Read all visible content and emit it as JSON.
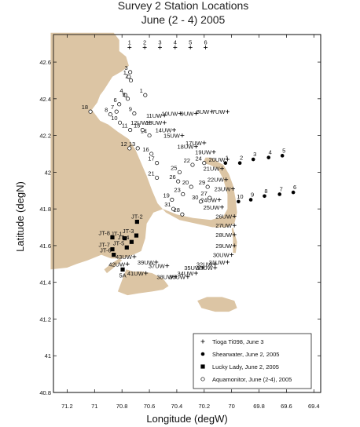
{
  "chart_data": {
    "type": "scatter",
    "title": "Survey 2 Station Locations",
    "subtitle": "June (2 - 4) 2005",
    "xlabel": "Longitude (degW)",
    "ylabel": "Latitude (degN)",
    "xlim": [
      71.3,
      69.35
    ],
    "ylim": [
      40.8,
      42.75
    ],
    "xticks": [
      "71.2",
      "71",
      "70.8",
      "70.6",
      "70.4",
      "70.2",
      "70",
      "69.8",
      "69.6",
      "69.4"
    ],
    "xtick_values": [
      71.2,
      71.0,
      70.8,
      70.6,
      70.4,
      70.2,
      70.0,
      69.8,
      69.6,
      69.4
    ],
    "yticks": [
      "40.8",
      "41",
      "41.2",
      "41.4",
      "41.6",
      "41.8",
      "42",
      "42.2",
      "42.4",
      "42.6"
    ],
    "ytick_values": [
      40.8,
      41.0,
      41.2,
      41.4,
      41.6,
      41.8,
      42.0,
      42.2,
      42.4,
      42.6
    ],
    "land_color": "#dcc5a4",
    "legend_position": "bottom-right",
    "series": [
      {
        "name": "Tioga Ti098, June 3",
        "marker": "plus",
        "points": [
          {
            "label": "1",
            "x": 70.745,
            "y": 42.68
          },
          {
            "label": "2",
            "x": 70.634,
            "y": 42.68
          },
          {
            "label": "3",
            "x": 70.523,
            "y": 42.68
          },
          {
            "label": "4",
            "x": 70.412,
            "y": 42.68
          },
          {
            "label": "5",
            "x": 70.301,
            "y": 42.68
          },
          {
            "label": "6",
            "x": 70.19,
            "y": 42.68
          },
          {
            "label": "7UW",
            "x": 70.03,
            "y": 42.33
          },
          {
            "label": "8UW",
            "x": 70.145,
            "y": 42.33
          },
          {
            "label": "9UW",
            "x": 70.26,
            "y": 42.32
          },
          {
            "label": "10UW",
            "x": 70.375,
            "y": 42.32
          },
          {
            "label": "11UW",
            "x": 70.49,
            "y": 42.31
          },
          {
            "label": "12UW",
            "x": 70.6,
            "y": 42.27
          },
          {
            "label": "13UW",
            "x": 70.49,
            "y": 42.27
          },
          {
            "label": "14UW",
            "x": 70.42,
            "y": 42.23
          },
          {
            "label": "15UW",
            "x": 70.36,
            "y": 42.2
          },
          {
            "label": "17UW",
            "x": 70.2,
            "y": 42.16
          },
          {
            "label": "18UW",
            "x": 70.26,
            "y": 42.14
          },
          {
            "label": "19UW",
            "x": 70.13,
            "y": 42.11
          },
          {
            "label": "20UW",
            "x": 70.03,
            "y": 42.07
          },
          {
            "label": "21UW",
            "x": 70.07,
            "y": 42.02
          },
          {
            "label": "22UW",
            "x": 70.04,
            "y": 41.96
          },
          {
            "label": "23UW",
            "x": 69.99,
            "y": 41.91
          },
          {
            "label": "24UW",
            "x": 70.09,
            "y": 41.85
          },
          {
            "label": "25UW",
            "x": 70.07,
            "y": 41.81
          },
          {
            "label": "26UW",
            "x": 69.98,
            "y": 41.76
          },
          {
            "label": "27UW",
            "x": 69.98,
            "y": 41.71
          },
          {
            "label": "28UW",
            "x": 69.98,
            "y": 41.66
          },
          {
            "label": "29UW",
            "x": 69.98,
            "y": 41.6
          },
          {
            "label": "30UW",
            "x": 70.0,
            "y": 41.55
          },
          {
            "label": "31UW",
            "x": 70.03,
            "y": 41.51
          },
          {
            "label": "32UW",
            "x": 70.12,
            "y": 41.5
          },
          {
            "label": "33UW",
            "x": 70.12,
            "y": 41.48
          },
          {
            "label": "34UW",
            "x": 70.26,
            "y": 41.45
          },
          {
            "label": "35UW",
            "x": 70.21,
            "y": 41.48
          },
          {
            "label": "36UW",
            "x": 70.32,
            "y": 41.43
          },
          {
            "label": "37UW",
            "x": 70.47,
            "y": 41.49
          },
          {
            "label": "38UW",
            "x": 70.41,
            "y": 41.43
          },
          {
            "label": "39UW",
            "x": 70.55,
            "y": 41.51
          },
          {
            "label": "41UW",
            "x": 70.625,
            "y": 41.45
          },
          {
            "label": "42UW",
            "x": 70.76,
            "y": 41.5
          },
          {
            "label": "43UW",
            "x": 70.71,
            "y": 41.54
          }
        ]
      },
      {
        "name": "Shearwater, June 2, 2005",
        "marker": "filled-circle",
        "points": [
          {
            "label": "1",
            "x": 70.045,
            "y": 42.05
          },
          {
            "label": "2",
            "x": 69.94,
            "y": 42.05
          },
          {
            "label": "3",
            "x": 69.842,
            "y": 42.07
          },
          {
            "label": "4",
            "x": 69.73,
            "y": 42.08
          },
          {
            "label": "5",
            "x": 69.63,
            "y": 42.09
          },
          {
            "label": "6",
            "x": 69.55,
            "y": 41.89
          },
          {
            "label": "7",
            "x": 69.65,
            "y": 41.88
          },
          {
            "label": "8",
            "x": 69.76,
            "y": 41.87
          },
          {
            "label": "9",
            "x": 69.86,
            "y": 41.85
          },
          {
            "label": "10",
            "x": 69.95,
            "y": 41.84
          }
        ]
      },
      {
        "name": "Lucky Lady, June 2, 2005",
        "marker": "filled-square",
        "points": [
          {
            "label": "JT-1",
            "x": 70.78,
            "y": 41.64
          },
          {
            "label": "JT-2",
            "x": 70.69,
            "y": 41.73
          },
          {
            "label": "JT-3",
            "x": 70.695,
            "y": 41.655
          },
          {
            "label": "JT-4",
            "x": 70.73,
            "y": 41.62
          },
          {
            "label": "JT-5",
            "x": 70.765,
            "y": 41.59
          },
          {
            "label": "JT-6",
            "x": 70.86,
            "y": 41.55
          },
          {
            "label": "JT-7",
            "x": 70.87,
            "y": 41.58
          },
          {
            "label": "JT-8",
            "x": 70.87,
            "y": 41.645
          },
          {
            "label": "5A",
            "x": 70.795,
            "y": 41.47
          }
        ]
      },
      {
        "name": "Aquamonitor, June (2-4), 2005",
        "marker": "open-circle",
        "points": [
          {
            "label": "1",
            "x": 70.75,
            "y": 42.52
          },
          {
            "label": "2",
            "x": 70.735,
            "y": 42.5
          },
          {
            "label": "3",
            "x": 70.74,
            "y": 42.545
          },
          {
            "label": "4",
            "x": 70.775,
            "y": 42.42
          },
          {
            "label": "5",
            "x": 70.758,
            "y": 42.4
          },
          {
            "label": "6",
            "x": 70.82,
            "y": 42.37
          },
          {
            "label": "7",
            "x": 70.84,
            "y": 42.33
          },
          {
            "label": "8",
            "x": 70.885,
            "y": 42.315
          },
          {
            "label": "9",
            "x": 70.71,
            "y": 42.32
          },
          {
            "label": "10",
            "x": 70.815,
            "y": 42.27
          },
          {
            "label": "11",
            "x": 70.74,
            "y": 42.23
          },
          {
            "label": "12",
            "x": 70.745,
            "y": 42.13
          },
          {
            "label": "13",
            "x": 70.685,
            "y": 42.13
          },
          {
            "label": "14",
            "x": 70.6,
            "y": 42.2
          },
          {
            "label": "15",
            "x": 70.65,
            "y": 42.23
          },
          {
            "label": "16",
            "x": 70.585,
            "y": 42.1
          },
          {
            "label": "17",
            "x": 70.545,
            "y": 42.05
          },
          {
            "label": "18",
            "x": 71.03,
            "y": 42.33
          },
          {
            "label": "19",
            "x": 70.435,
            "y": 41.85
          },
          {
            "label": "20",
            "x": 70.295,
            "y": 41.92
          },
          {
            "label": "21",
            "x": 70.545,
            "y": 41.97
          },
          {
            "label": "22",
            "x": 70.285,
            "y": 42.04
          },
          {
            "label": "23",
            "x": 70.355,
            "y": 41.88
          },
          {
            "label": "24",
            "x": 70.2,
            "y": 42.05
          },
          {
            "label": "25",
            "x": 70.38,
            "y": 42.0
          },
          {
            "label": "26",
            "x": 70.39,
            "y": 41.95
          },
          {
            "label": "27",
            "x": 70.16,
            "y": 41.86
          },
          {
            "label": "28",
            "x": 70.36,
            "y": 41.77
          },
          {
            "label": "29",
            "x": 70.175,
            "y": 41.92
          },
          {
            "label": "30",
            "x": 70.225,
            "y": 41.84
          },
          {
            "label": "31",
            "x": 70.425,
            "y": 41.8
          },
          {
            "label": "1",
            "x": 70.63,
            "y": 42.42
          }
        ]
      }
    ]
  }
}
